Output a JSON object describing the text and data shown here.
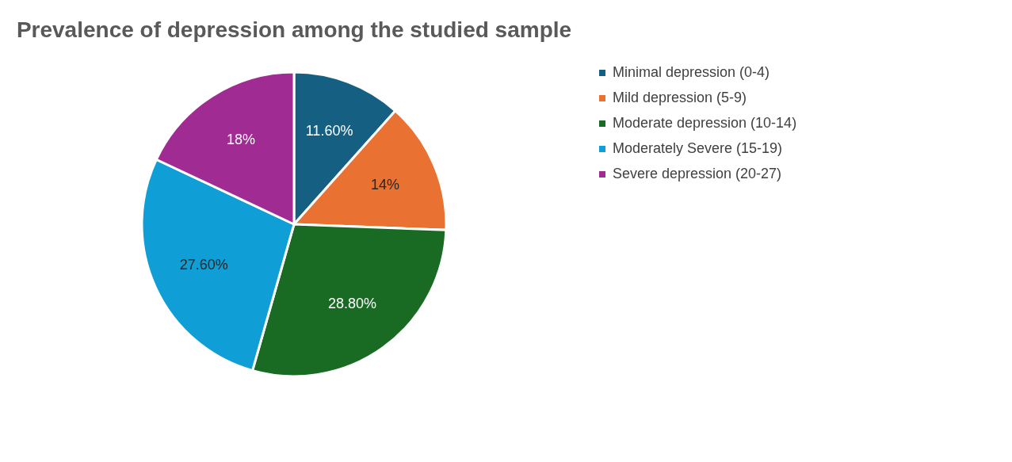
{
  "chart_data": {
    "type": "pie",
    "title": "Prevalence of depression among the studied sample",
    "categories": [
      "Minimal depression (0-4)",
      "Mild depression (5-9)",
      "Moderate depression (10-14)",
      "Moderately Severe (15-19)",
      "Severe depression (20-27)"
    ],
    "values": [
      11.6,
      14,
      28.8,
      27.6,
      18
    ],
    "colors": [
      "#156082",
      "#e97132",
      "#196b24",
      "#0f9ed5",
      "#a02b93"
    ],
    "value_labels": [
      "11.60%",
      "14%",
      "28.80%",
      "27.60%",
      "18%"
    ],
    "legend": "right"
  }
}
